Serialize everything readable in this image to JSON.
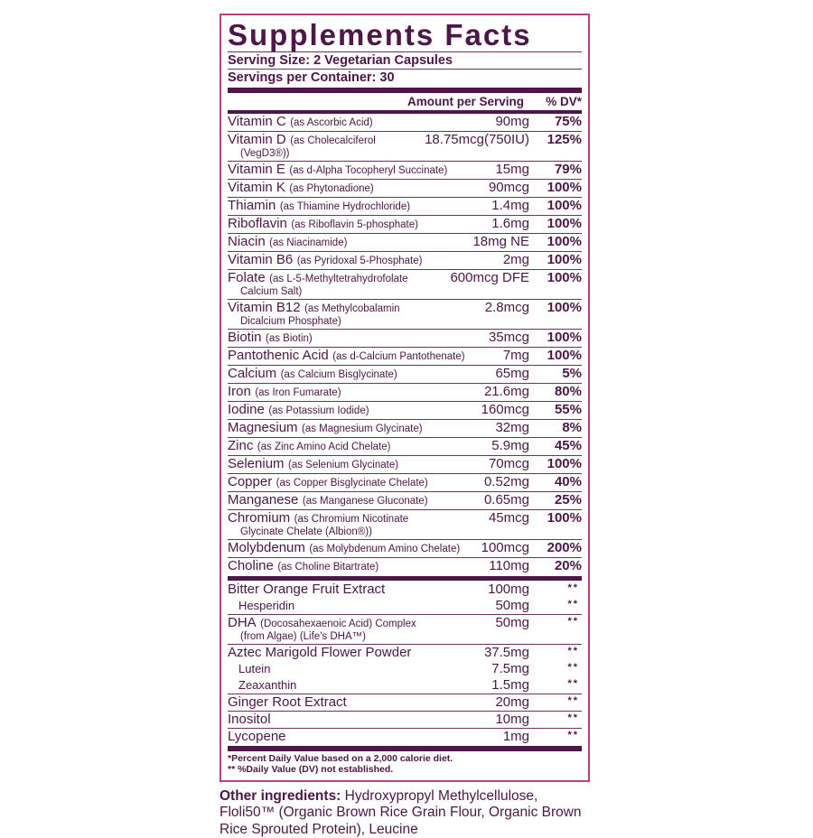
{
  "colors": {
    "text": "#4e1649",
    "border": "#bc3f7e",
    "separator": "#6d3367"
  },
  "title": "Supplements Facts",
  "serving": {
    "size": "Serving Size: 2 Vegetarian Capsules",
    "per_container": "Servings per Container: 30"
  },
  "columns": {
    "amount": "Amount per Serving",
    "dv": "% DV*"
  },
  "table": {
    "rows": [
      {
        "name": "Vitamin C",
        "detail": "(as Ascorbic Acid)",
        "amount": "90mg",
        "dv": "75%"
      },
      {
        "name": "Vitamin D",
        "detail": "(as Cholecalciferol",
        "detail2": "(VegD3®))",
        "amount": "18.75mcg(750IU)",
        "dv": "125%",
        "divider": true
      },
      {
        "name": "Vitamin E",
        "detail": "(as d-Alpha Tocopheryl Succinate)",
        "amount": "15mg",
        "dv": "79%",
        "divider": true
      },
      {
        "name": "Vitamin K",
        "detail": "(as Phytonadione)",
        "amount": "90mcg",
        "dv": "100%",
        "divider": true
      },
      {
        "name": "Thiamin",
        "detail": "(as Thiamine Hydrochloride)",
        "amount": "1.4mg",
        "dv": "100%",
        "divider": true
      },
      {
        "name": "Riboflavin",
        "detail": "(as Riboflavin 5-phosphate)",
        "amount": "1.6mg",
        "dv": "100%",
        "divider": true
      },
      {
        "name": "Niacin",
        "detail": "(as Niacinamide)",
        "amount": "18mg NE",
        "dv": "100%",
        "divider": true
      },
      {
        "name": "Vitamin B6",
        "detail": "(as Pyridoxal 5-Phosphate)",
        "amount": "2mg",
        "dv": "100%",
        "divider": true
      },
      {
        "name": "Folate",
        "detail": "(as L-5-Methyltetrahydrofolate",
        "detail2": "Calcium Salt)",
        "amount": "600mcg DFE",
        "dv": "100%",
        "divider": true
      },
      {
        "name": "Vitamin B12",
        "detail": "(as Methylcobalamin",
        "detail2": "Dicalcium Phosphate)",
        "amount": "2.8mcg",
        "dv": "100%",
        "divider": true
      },
      {
        "name": "Biotin",
        "detail": "(as Biotin)",
        "amount": "35mcg",
        "dv": "100%",
        "divider": true
      },
      {
        "name": "Pantothenic Acid",
        "detail": "(as d-Calcium Pantothenate)",
        "amount": "7mg",
        "dv": "100%",
        "divider": true
      },
      {
        "name": "Calcium",
        "detail": "(as Calcium Bisglycinate)",
        "amount": "65mg",
        "dv": "5%",
        "divider": true
      },
      {
        "name": "Iron",
        "detail": "(as Iron Fumarate)",
        "amount": "21.6mg",
        "dv": "80%",
        "divider": true
      },
      {
        "name": "Iodine",
        "detail": "(as Potassium Iodide)",
        "amount": "160mcg",
        "dv": "55%",
        "divider": true
      },
      {
        "name": "Magnesium",
        "detail": "(as Magnesium Glycinate)",
        "amount": "32mg",
        "dv": "8%",
        "divider": true
      },
      {
        "name": "Zinc",
        "detail": "(as Zinc Amino Acid Chelate)",
        "amount": "5.9mg",
        "dv": "45%",
        "divider": true
      },
      {
        "name": "Selenium",
        "detail": "(as Selenium Glycinate)",
        "amount": "70mcg",
        "dv": "100%",
        "divider": true
      },
      {
        "name": "Copper",
        "detail": "(as Copper Bisglycinate Chelate)",
        "amount": "0.52mg",
        "dv": "40%",
        "divider": true
      },
      {
        "name": "Manganese",
        "detail": "(as Manganese Gluconate)",
        "amount": "0.65mg",
        "dv": "25%",
        "divider": true
      },
      {
        "name": "Chromium",
        "detail": "(as Chromium Nicotinate",
        "detail2": "Glycinate Chelate (Albion®))",
        "amount": "45mcg",
        "dv": "100%",
        "divider": true
      },
      {
        "name": "Molybdenum",
        "detail": "(as Molybdenum Amino Chelate)",
        "amount": "100mcg",
        "dv": "200%",
        "divider": true
      },
      {
        "name": "Choline",
        "detail": "(as Choline Bitartrate)",
        "amount": "110mg",
        "dv": "20%",
        "divider": true
      },
      {
        "name": "Bitter Orange Fruit Extract",
        "amount": "100mg",
        "dv": "**",
        "thick": true
      },
      {
        "name": "Hesperidin",
        "amount": "50mg",
        "dv": "**",
        "sub": true
      },
      {
        "name": "DHA",
        "detail": "(Docosahexaenoic Acid) Complex",
        "detail2": "(from Algae) (Life's DHA™)",
        "amount": "50mg",
        "dv": "**",
        "divider": true
      },
      {
        "name": "Aztec Marigold Flower Powder",
        "amount": "37.5mg",
        "dv": "**",
        "divider": true
      },
      {
        "name": "Lutein",
        "amount": "7.5mg",
        "dv": "**",
        "sub": true
      },
      {
        "name": "Zeaxanthin",
        "amount": "1.5mg",
        "dv": "**",
        "sub": true
      },
      {
        "name": "Ginger Root Extract",
        "amount": "20mg",
        "dv": "**",
        "divider": true
      },
      {
        "name": "Inositol",
        "amount": "10mg",
        "dv": "**",
        "divider": true
      },
      {
        "name": "Lycopene",
        "amount": "1mg",
        "dv": "**",
        "divider": true
      }
    ]
  },
  "footnotes": {
    "line1": "*Percent Daily Value based on a 2,000 calorie diet.",
    "line2": "** %Daily Value (DV) not established."
  },
  "other_ingredients": {
    "label": "Other ingredients:",
    "text": " Hydroxypropyl Methylcellulose, Floli50™ (Organic Brown Rice Grain Flour, Organic Brown Rice Sprouted Protein), Leucine"
  }
}
